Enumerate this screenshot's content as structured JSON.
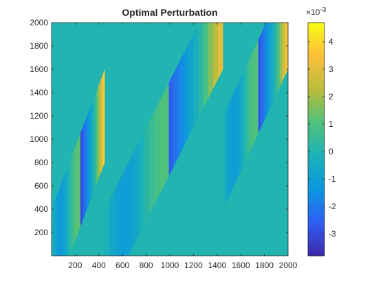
{
  "chart_data": {
    "type": "heatmap",
    "title": "Optimal Perturbation",
    "xlabel": "",
    "ylabel": "",
    "xlim": [
      0,
      2000
    ],
    "ylim": [
      0,
      2000
    ],
    "xticks": [
      200,
      400,
      600,
      800,
      1000,
      1200,
      1400,
      1600,
      1800,
      2000
    ],
    "yticks": [
      200,
      400,
      600,
      800,
      1000,
      1200,
      1400,
      1600,
      1800,
      2000
    ],
    "colorbar": {
      "lim": [
        -3.8,
        4.7
      ],
      "ticks": [
        -3,
        -2,
        -1,
        0,
        1,
        2,
        3,
        4
      ],
      "multiplier_label": "×10",
      "multiplier_exponent": "-3",
      "colormap": [
        "#3e26a8",
        "#2f5ef3",
        "#0b96e0",
        "#1ab2b8",
        "#4fc17c",
        "#b9bd3c",
        "#fcbe3a",
        "#f9fb15"
      ]
    },
    "background_value": 0,
    "bands": [
      {
        "name": "band-1",
        "x_start": 0,
        "x_end": 450,
        "y_low": 0,
        "y_high": 1200,
        "peak": 4.2,
        "trough": -3.5
      },
      {
        "name": "band-2",
        "x_start": 450,
        "x_end": 1450,
        "y_low": 0,
        "y_high": 2000,
        "peak": 3.5,
        "trough": -3.0
      },
      {
        "name": "band-3",
        "x_start": 1450,
        "x_end": 2000,
        "y_low": 800,
        "y_high": 2000,
        "peak": 4.0,
        "trough": -3.2
      }
    ]
  }
}
